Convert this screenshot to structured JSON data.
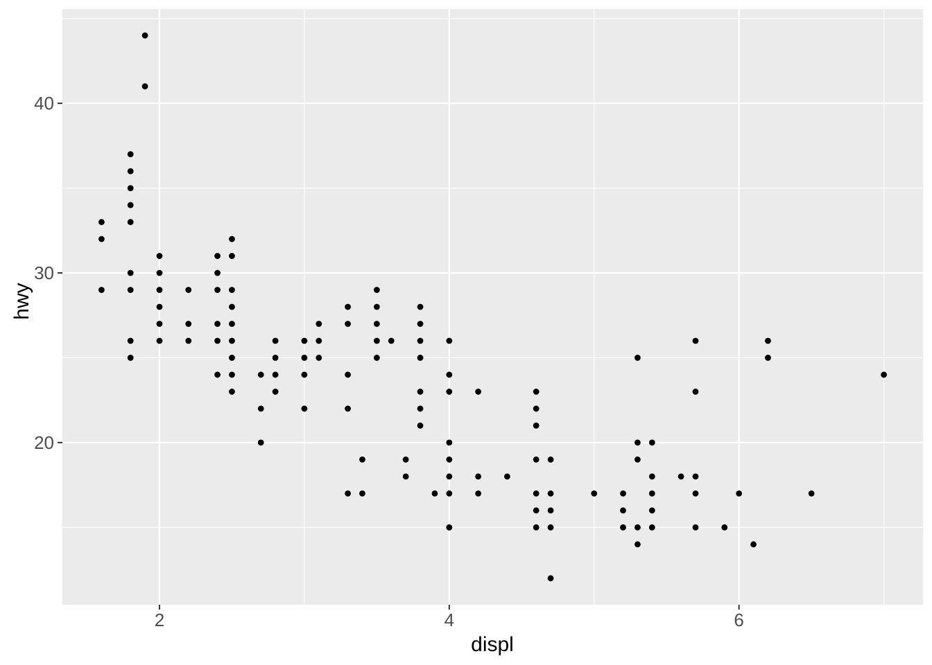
{
  "chart_data": {
    "type": "scatter",
    "title": "",
    "xlabel": "displ",
    "ylabel": "hwy",
    "xlim": [
      1.33,
      7.27
    ],
    "ylim": [
      10.44,
      45.56
    ],
    "x_major_ticks": [
      2,
      4,
      6
    ],
    "x_minor_ticks": [
      3,
      5,
      7
    ],
    "y_major_ticks": [
      20,
      30,
      40
    ],
    "y_minor_ticks": [
      15,
      25,
      35,
      45
    ],
    "grid": "on",
    "legend": "none",
    "points": [
      [
        1.6,
        33
      ],
      [
        1.6,
        32
      ],
      [
        1.6,
        29
      ],
      [
        1.8,
        37
      ],
      [
        1.8,
        36
      ],
      [
        1.8,
        35
      ],
      [
        1.8,
        34
      ],
      [
        1.8,
        33
      ],
      [
        1.8,
        30
      ],
      [
        1.8,
        29
      ],
      [
        1.8,
        26
      ],
      [
        1.8,
        25
      ],
      [
        1.9,
        44
      ],
      [
        1.9,
        41
      ],
      [
        2,
        31
      ],
      [
        2,
        30
      ],
      [
        2,
        29
      ],
      [
        2,
        28
      ],
      [
        2,
        27
      ],
      [
        2,
        26
      ],
      [
        2.2,
        29
      ],
      [
        2.2,
        27
      ],
      [
        2.2,
        26
      ],
      [
        2.4,
        31
      ],
      [
        2.4,
        30
      ],
      [
        2.4,
        29
      ],
      [
        2.4,
        27
      ],
      [
        2.4,
        26
      ],
      [
        2.4,
        24
      ],
      [
        2.5,
        32
      ],
      [
        2.5,
        31
      ],
      [
        2.5,
        29
      ],
      [
        2.5,
        28
      ],
      [
        2.5,
        27
      ],
      [
        2.5,
        26
      ],
      [
        2.5,
        25
      ],
      [
        2.5,
        24
      ],
      [
        2.5,
        23
      ],
      [
        2.7,
        24
      ],
      [
        2.7,
        22
      ],
      [
        2.7,
        20
      ],
      [
        2.8,
        26
      ],
      [
        2.8,
        25
      ],
      [
        2.8,
        24
      ],
      [
        2.8,
        23
      ],
      [
        3,
        26
      ],
      [
        3,
        25
      ],
      [
        3,
        24
      ],
      [
        3,
        22
      ],
      [
        3.1,
        27
      ],
      [
        3.1,
        26
      ],
      [
        3.1,
        25
      ],
      [
        3.3,
        28
      ],
      [
        3.3,
        27
      ],
      [
        3.3,
        24
      ],
      [
        3.3,
        22
      ],
      [
        3.3,
        17
      ],
      [
        3.4,
        19
      ],
      [
        3.4,
        17
      ],
      [
        3.5,
        29
      ],
      [
        3.5,
        28
      ],
      [
        3.5,
        27
      ],
      [
        3.5,
        26
      ],
      [
        3.5,
        25
      ],
      [
        3.6,
        26
      ],
      [
        3.7,
        19
      ],
      [
        3.7,
        18
      ],
      [
        3.8,
        28
      ],
      [
        3.8,
        27
      ],
      [
        3.8,
        26
      ],
      [
        3.8,
        25
      ],
      [
        3.8,
        23
      ],
      [
        3.8,
        22
      ],
      [
        3.8,
        21
      ],
      [
        3.9,
        17
      ],
      [
        4,
        26
      ],
      [
        4,
        24
      ],
      [
        4,
        23
      ],
      [
        4,
        20
      ],
      [
        4,
        19
      ],
      [
        4,
        18
      ],
      [
        4,
        17
      ],
      [
        4,
        15
      ],
      [
        4.2,
        23
      ],
      [
        4.2,
        18
      ],
      [
        4.2,
        17
      ],
      [
        4.4,
        18
      ],
      [
        4.6,
        23
      ],
      [
        4.6,
        22
      ],
      [
        4.6,
        21
      ],
      [
        4.6,
        19
      ],
      [
        4.6,
        17
      ],
      [
        4.6,
        16
      ],
      [
        4.6,
        15
      ],
      [
        4.7,
        19
      ],
      [
        4.7,
        17
      ],
      [
        4.7,
        16
      ],
      [
        4.7,
        15
      ],
      [
        4.7,
        12
      ],
      [
        5,
        17
      ],
      [
        5.2,
        17
      ],
      [
        5.2,
        16
      ],
      [
        5.2,
        15
      ],
      [
        5.3,
        25
      ],
      [
        5.3,
        20
      ],
      [
        5.3,
        19
      ],
      [
        5.3,
        15
      ],
      [
        5.3,
        14
      ],
      [
        5.4,
        20
      ],
      [
        5.4,
        18
      ],
      [
        5.4,
        17
      ],
      [
        5.4,
        16
      ],
      [
        5.4,
        15
      ],
      [
        5.6,
        18
      ],
      [
        5.7,
        26
      ],
      [
        5.7,
        23
      ],
      [
        5.7,
        18
      ],
      [
        5.7,
        17
      ],
      [
        5.7,
        15
      ],
      [
        5.9,
        15
      ],
      [
        6,
        17
      ],
      [
        6.1,
        14
      ],
      [
        6.2,
        26
      ],
      [
        6.2,
        25
      ],
      [
        6.5,
        17
      ],
      [
        7,
        24
      ]
    ]
  },
  "style": {
    "outer_bg": "#FFFFFF",
    "panel_bg": "#EBEBEB",
    "grid_major_color": "#FFFFFF",
    "grid_minor_color": "#FFFFFF",
    "point_color": "#000000",
    "tick_mark_color": "#333333",
    "tick_label_color": "#4D4D4D",
    "axis_title_color": "#000000"
  }
}
